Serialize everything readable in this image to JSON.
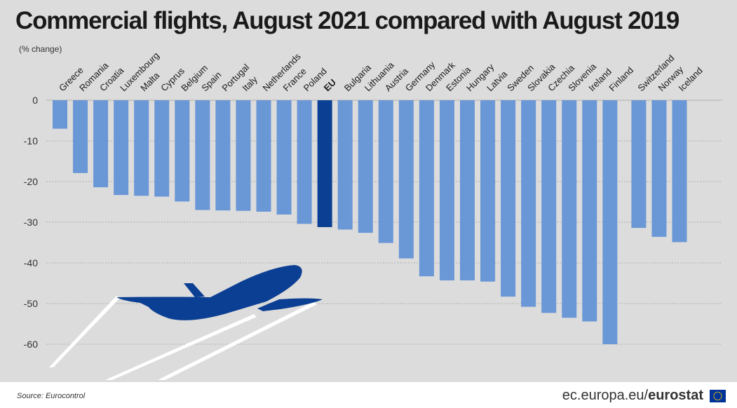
{
  "page": {
    "source": "Source: Eurocontrol",
    "brand_url": "ec.europa.eu/",
    "brand_name": "eurostat"
  },
  "colors": {
    "bar": "#6a97d6",
    "highlight": "#0b3f93",
    "plane": "#0b3f93",
    "grid": "#b0b0b0",
    "panel": "#dcdcdc",
    "flag_blue": "#003399",
    "flag_star": "#ffcc00"
  },
  "icons": [
    "airplane-icon",
    "eu-flag-icon"
  ],
  "chart_data": {
    "type": "bar",
    "title": "Commercial flights, August 2021 compared with August 2019",
    "subtitle": "(% change)",
    "ylim": [
      -62,
      0
    ],
    "yticks": [
      0,
      -10,
      -20,
      -30,
      -40,
      -50,
      -60
    ],
    "grid": true,
    "highlight": "EU",
    "categories": [
      "Greece",
      "Romania",
      "Croatia",
      "Luxembourg",
      "Malta",
      "Cyprus",
      "Belgium",
      "Spain",
      "Portugal",
      "Italy",
      "Netherlands",
      "France",
      "Poland",
      "EU",
      "Bulgaria",
      "Lithuania",
      "Austria",
      "Germany",
      "Denmark",
      "Estonia",
      "Hungary",
      "Latvia",
      "Sweden",
      "Slovakia",
      "Czechia",
      "Slovenia",
      "Ireland",
      "Finland",
      "Switzerland",
      "Norway",
      "Iceland"
    ],
    "values": [
      -7.0,
      -17.9,
      -21.4,
      -23.3,
      -23.5,
      -23.7,
      -24.9,
      -27.0,
      -27.1,
      -27.2,
      -27.4,
      -28.1,
      -30.4,
      -31.2,
      -31.8,
      -32.6,
      -35.1,
      -38.9,
      -43.3,
      -44.3,
      -44.3,
      -44.6,
      -48.3,
      -50.8,
      -52.3,
      -53.5,
      -54.4,
      -60.0,
      -31.4,
      -33.6,
      -34.9
    ]
  }
}
